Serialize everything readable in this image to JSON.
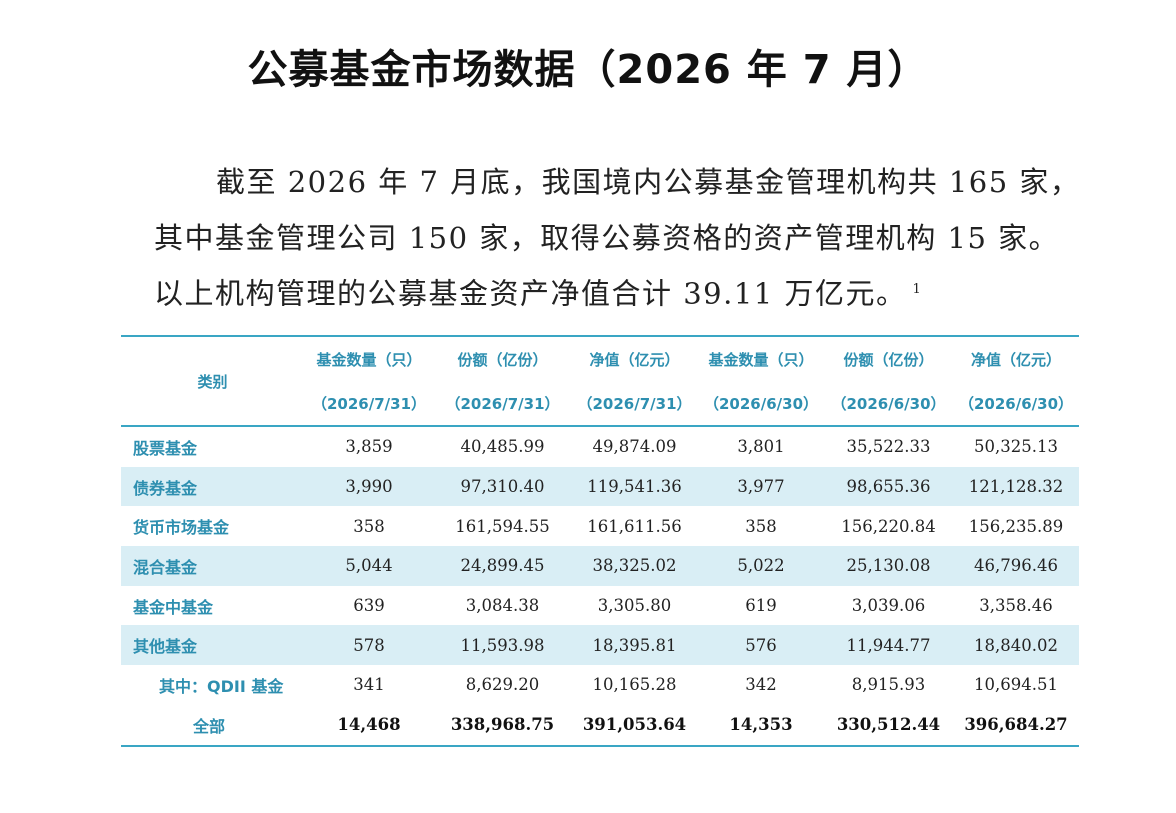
{
  "document": {
    "title": "公募基金市场数据（2026 年 7 月）",
    "paragraph": {
      "line1": "截至 2026 年 7 月底，我国境内公募基金管理机构共 165 家，",
      "line2": "其中基金管理公司 150 家，取得公募资格的资产管理机构 15 家。",
      "line3": "以上机构管理的公募基金资产净值合计 39.11 万亿元。",
      "footnote_marker": "1"
    }
  },
  "table": {
    "category_header": "类别",
    "columns": [
      {
        "name": "基金数量（只）",
        "date": "（2026/7/31）"
      },
      {
        "name": "份额（亿份）",
        "date": "（2026/7/31）"
      },
      {
        "name": "净值（亿元）",
        "date": "（2026/7/31）"
      },
      {
        "name": "基金数量（只）",
        "date": "（2026/6/30）"
      },
      {
        "name": "份额（亿份）",
        "date": "（2026/6/30）"
      },
      {
        "name": "净值（亿元）",
        "date": "（2026/6/30）"
      }
    ],
    "rows": [
      {
        "label": "股票基金",
        "values": [
          "3,859",
          "40,485.99",
          "49,874.09",
          "3,801",
          "35,522.33",
          "50,325.13"
        ]
      },
      {
        "label": "债券基金",
        "values": [
          "3,990",
          "97,310.40",
          "119,541.36",
          "3,977",
          "98,655.36",
          "121,128.32"
        ]
      },
      {
        "label": "货币市场基金",
        "values": [
          "358",
          "161,594.55",
          "161,611.56",
          "358",
          "156,220.84",
          "156,235.89"
        ]
      },
      {
        "label": "混合基金",
        "values": [
          "5,044",
          "24,899.45",
          "38,325.02",
          "5,022",
          "25,130.08",
          "46,796.46"
        ]
      },
      {
        "label": "基金中基金",
        "values": [
          "639",
          "3,084.38",
          "3,305.80",
          "619",
          "3,039.06",
          "3,358.46"
        ]
      },
      {
        "label": "其他基金",
        "values": [
          "578",
          "11,593.98",
          "18,395.81",
          "576",
          "11,944.77",
          "18,840.02"
        ]
      },
      {
        "label": "其中：QDII 基金",
        "values": [
          "341",
          "8,629.20",
          "10,165.28",
          "342",
          "8,915.93",
          "10,694.51"
        ]
      },
      {
        "label": "全部",
        "values": [
          "14,468",
          "338,968.75",
          "391,053.64",
          "14,353",
          "330,512.44",
          "396,684.27"
        ]
      }
    ]
  },
  "colors": {
    "accent": "#2e8fb0",
    "rule": "#3aa6c4",
    "row_shade": "#d9eef5"
  }
}
